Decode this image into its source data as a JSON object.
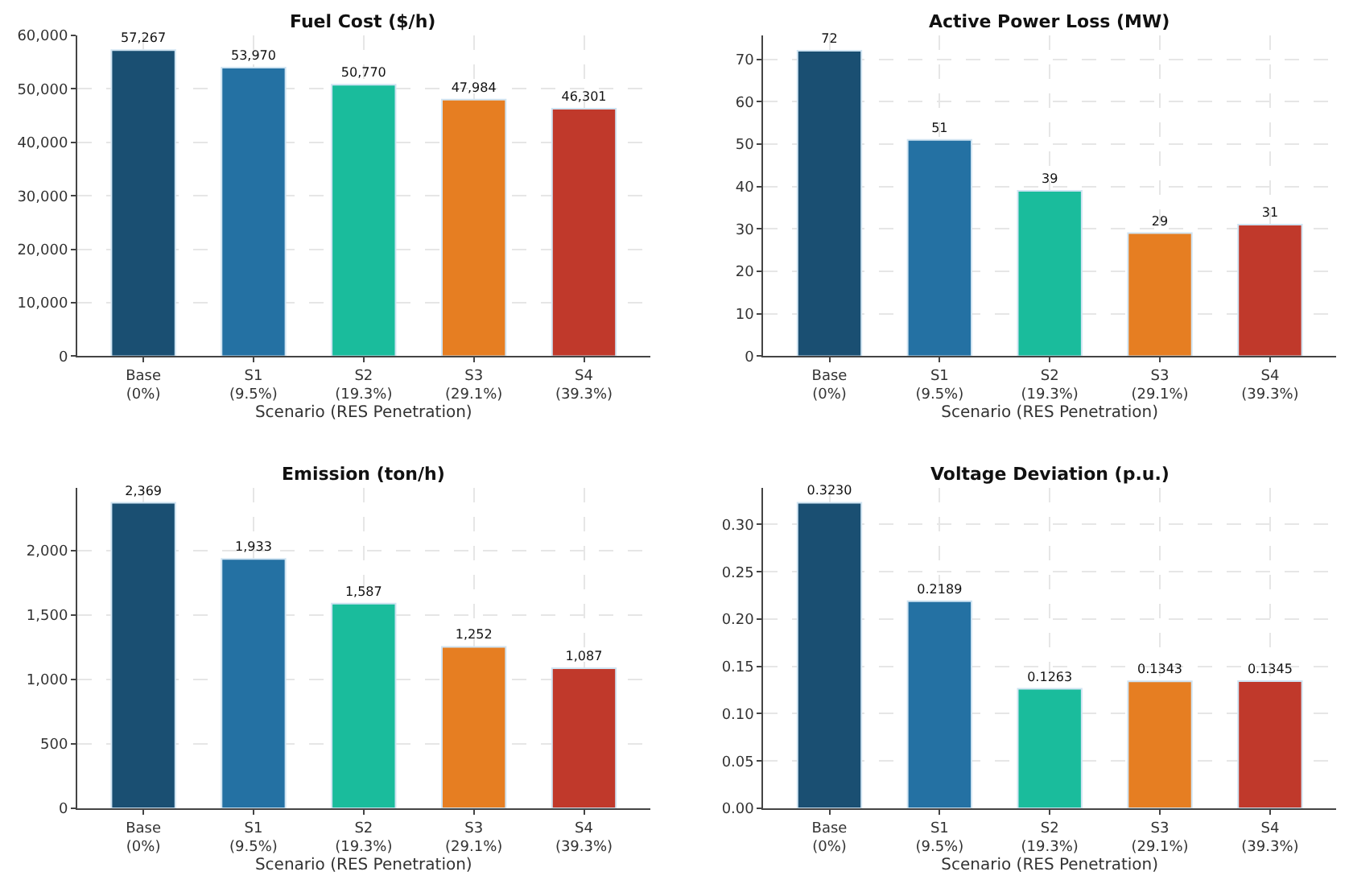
{
  "chart_data": [
    {
      "type": "bar",
      "title": "Fuel Cost ($/h)",
      "xlabel": "Scenario (RES Penetration)",
      "categories": [
        "Base\n(0%)",
        "S1\n(9.5%)",
        "S2\n(19.3%)",
        "S3\n(29.1%)",
        "S4\n(39.3%)"
      ],
      "values": [
        57267,
        53970,
        50770,
        47984,
        46301
      ],
      "value_labels": [
        "57,267",
        "53,970",
        "50,770",
        "47,984",
        "46,301"
      ],
      "colors": [
        "#1a4f72",
        "#2471a3",
        "#1abc9c",
        "#e67e22",
        "#c0392b"
      ],
      "ylim": [
        0,
        60000
      ],
      "yticks": [
        0,
        {
          "value": 10000,
          "label": "10,000"
        },
        {
          "value": 20000,
          "label": "20,000"
        },
        {
          "value": 30000,
          "label": "30,000"
        },
        {
          "value": 40000,
          "label": "40,000"
        },
        {
          "value": 50000,
          "label": "50,000"
        },
        {
          "value": 60000,
          "label": "60,000"
        }
      ],
      "grid": true
    },
    {
      "type": "bar",
      "title": "Active Power Loss (MW)",
      "xlabel": "Scenario (RES Penetration)",
      "categories": [
        "Base\n(0%)",
        "S1\n(9.5%)",
        "S2\n(19.3%)",
        "S3\n(29.1%)",
        "S4\n(39.3%)"
      ],
      "values": [
        72,
        51,
        39,
        29,
        31
      ],
      "value_labels": [
        "72",
        "51",
        "39",
        "29",
        "31"
      ],
      "colors": [
        "#1a4f72",
        "#2471a3",
        "#1abc9c",
        "#e67e22",
        "#c0392b"
      ],
      "ylim": [
        0,
        75.6
      ],
      "yticks": [
        0,
        10,
        20,
        30,
        40,
        50,
        60,
        70
      ],
      "grid": true
    },
    {
      "type": "bar",
      "title": "Emission (ton/h)",
      "xlabel": "Scenario (RES Penetration)",
      "categories": [
        "Base\n(0%)",
        "S1\n(9.5%)",
        "S2\n(19.3%)",
        "S3\n(29.1%)",
        "S4\n(39.3%)"
      ],
      "values": [
        2369,
        1933,
        1587,
        1252,
        1087
      ],
      "value_labels": [
        "2,369",
        "1,933",
        "1,587",
        "1,252",
        "1,087"
      ],
      "colors": [
        "#1a4f72",
        "#2471a3",
        "#1abc9c",
        "#e67e22",
        "#c0392b"
      ],
      "ylim": [
        0,
        2487
      ],
      "yticks": [
        0,
        500,
        {
          "value": 1000,
          "label": "1,000"
        },
        {
          "value": 1500,
          "label": "1,500"
        },
        {
          "value": 2000,
          "label": "2,000"
        }
      ],
      "grid": true
    },
    {
      "type": "bar",
      "title": "Voltage Deviation (p.u.)",
      "xlabel": "Scenario (RES Penetration)",
      "categories": [
        "Base\n(0%)",
        "S1\n(9.5%)",
        "S2\n(19.3%)",
        "S3\n(29.1%)",
        "S4\n(39.3%)"
      ],
      "values": [
        0.323,
        0.2189,
        0.1263,
        0.1343,
        0.1345
      ],
      "value_labels": [
        "0.3230",
        "0.2189",
        "0.1263",
        "0.1343",
        "0.1345"
      ],
      "colors": [
        "#1a4f72",
        "#2471a3",
        "#1abc9c",
        "#e67e22",
        "#c0392b"
      ],
      "ylim": [
        0,
        0.339
      ],
      "yticks": [
        {
          "value": 0,
          "label": "0.00"
        },
        {
          "value": 0.05,
          "label": "0.05"
        },
        {
          "value": 0.1,
          "label": "0.10"
        },
        {
          "value": 0.15,
          "label": "0.15"
        },
        {
          "value": 0.2,
          "label": "0.20"
        },
        {
          "value": 0.25,
          "label": "0.25"
        },
        {
          "value": 0.3,
          "label": "0.30"
        }
      ],
      "grid": true
    }
  ]
}
